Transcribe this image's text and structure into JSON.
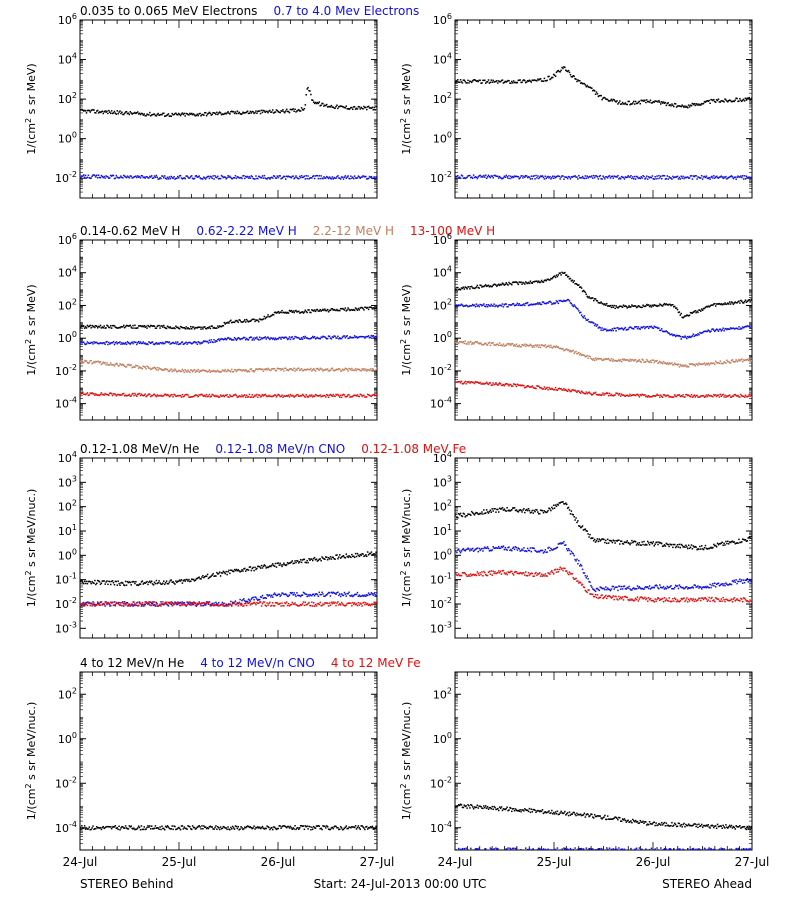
{
  "colors": {
    "black": "#000000",
    "blue": "#1010e0",
    "tan": "#c08060",
    "red": "#e01010",
    "axis": "#000000"
  },
  "footer": {
    "left": "STEREO Behind",
    "center": "Start: 24-Jul-2013 00:00 UTC",
    "right": "STEREO Ahead"
  },
  "chart_data": [
    {
      "type": "scatter",
      "panel": "row1-behind",
      "log_scale": true,
      "x_tick_labels": [],
      "x": [
        0,
        3
      ],
      "ylim": [
        0.001,
        1000000
      ],
      "ylabel": "1/(cm² s sr MeV)",
      "ytick_labels": [
        "10^-2",
        "10^0",
        "10^2",
        "10^4",
        "10^6"
      ],
      "legend_entries": [
        {
          "text": "0.035 to 0.065 MeV Electrons",
          "color": "black"
        },
        {
          "text": "0.7 to 4.0 Mev Electrons",
          "color": "blue"
        }
      ],
      "series": [
        {
          "color": "black",
          "points": [
            [
              0.0,
              25
            ],
            [
              0.3,
              22
            ],
            [
              0.6,
              18
            ],
            [
              0.9,
              16
            ],
            [
              1.2,
              17
            ],
            [
              1.5,
              20
            ],
            [
              1.8,
              22
            ],
            [
              2.1,
              25
            ],
            [
              2.2,
              28
            ],
            [
              2.27,
              35
            ],
            [
              2.3,
              500
            ],
            [
              2.35,
              80
            ],
            [
              2.45,
              50
            ],
            [
              2.6,
              40
            ],
            [
              2.8,
              35
            ],
            [
              3.0,
              35
            ]
          ]
        },
        {
          "color": "blue",
          "points": [
            [
              0.0,
              0.012
            ],
            [
              1.0,
              0.011
            ],
            [
              2.0,
              0.011
            ],
            [
              3.0,
              0.011
            ]
          ]
        }
      ]
    },
    {
      "type": "scatter",
      "panel": "row1-ahead",
      "log_scale": true,
      "x_tick_labels": [],
      "x": [
        0,
        3
      ],
      "ylim": [
        0.001,
        1000000
      ],
      "ylabel": "1/(cm² s sr MeV)",
      "ytick_labels": [
        "10^-2",
        "10^0",
        "10^2",
        "10^4",
        "10^6"
      ],
      "legend_entries": [],
      "series": [
        {
          "color": "black",
          "points": [
            [
              0.0,
              800
            ],
            [
              0.5,
              750
            ],
            [
              0.9,
              900
            ],
            [
              1.0,
              1500
            ],
            [
              1.1,
              4000
            ],
            [
              1.2,
              1200
            ],
            [
              1.35,
              400
            ],
            [
              1.5,
              100
            ],
            [
              1.7,
              60
            ],
            [
              2.0,
              80
            ],
            [
              2.3,
              40
            ],
            [
              2.6,
              80
            ],
            [
              3.0,
              100
            ]
          ]
        },
        {
          "color": "blue",
          "points": [
            [
              0.0,
              0.012
            ],
            [
              1.0,
              0.011
            ],
            [
              2.0,
              0.011
            ],
            [
              3.0,
              0.011
            ]
          ]
        }
      ]
    },
    {
      "type": "scatter",
      "panel": "row2-behind",
      "log_scale": true,
      "x_tick_labels": [],
      "x": [
        0,
        3
      ],
      "ylim": [
        1e-05,
        1000000
      ],
      "ylabel": "1/(cm² s sr MeV)",
      "ytick_labels": [
        "10^-4",
        "10^-2",
        "10^0",
        "10^2",
        "10^4",
        "10^6"
      ],
      "legend_entries": [
        {
          "text": "0.14-0.62 MeV H",
          "color": "black"
        },
        {
          "text": "0.62-2.22 MeV H",
          "color": "blue"
        },
        {
          "text": "2.2-12 MeV H",
          "color": "tan"
        },
        {
          "text": "13-100 MeV H",
          "color": "red"
        }
      ],
      "series": [
        {
          "color": "black",
          "points": [
            [
              0.0,
              5
            ],
            [
              0.4,
              5
            ],
            [
              0.8,
              5
            ],
            [
              1.2,
              4
            ],
            [
              1.4,
              5
            ],
            [
              1.5,
              10
            ],
            [
              1.8,
              12
            ],
            [
              2.0,
              40
            ],
            [
              2.2,
              40
            ],
            [
              2.5,
              50
            ],
            [
              3.0,
              70
            ]
          ]
        },
        {
          "color": "blue",
          "points": [
            [
              0.0,
              0.5
            ],
            [
              0.5,
              0.5
            ],
            [
              1.2,
              0.5
            ],
            [
              1.5,
              0.9
            ],
            [
              2.0,
              1.0
            ],
            [
              3.0,
              1.2
            ]
          ]
        },
        {
          "color": "tan",
          "points": [
            [
              0.0,
              0.04
            ],
            [
              0.5,
              0.02
            ],
            [
              1.0,
              0.01
            ],
            [
              1.5,
              0.01
            ],
            [
              2.0,
              0.012
            ],
            [
              3.0,
              0.012
            ]
          ]
        },
        {
          "color": "red",
          "points": [
            [
              0.0,
              0.0004
            ],
            [
              1.0,
              0.0003
            ],
            [
              2.0,
              0.0003
            ],
            [
              3.0,
              0.0003
            ]
          ]
        }
      ]
    },
    {
      "type": "scatter",
      "panel": "row2-ahead",
      "log_scale": true,
      "x_tick_labels": [],
      "x": [
        0,
        3
      ],
      "ylim": [
        1e-05,
        1000000
      ],
      "ylabel": "1/(cm² s sr MeV)",
      "ytick_labels": [
        "10^-4",
        "10^-2",
        "10^0",
        "10^2",
        "10^4",
        "10^6"
      ],
      "legend_entries": [],
      "series": [
        {
          "color": "black",
          "points": [
            [
              0.0,
              1000
            ],
            [
              0.5,
              2000
            ],
            [
              0.9,
              3000
            ],
            [
              1.1,
              10000
            ],
            [
              1.25,
              1500
            ],
            [
              1.35,
              300
            ],
            [
              1.6,
              80
            ],
            [
              2.0,
              100
            ],
            [
              2.2,
              120
            ],
            [
              2.3,
              20
            ],
            [
              2.6,
              100
            ],
            [
              3.0,
              200
            ]
          ]
        },
        {
          "color": "blue",
          "points": [
            [
              0.0,
              100
            ],
            [
              0.5,
              100
            ],
            [
              1.0,
              150
            ],
            [
              1.15,
              200
            ],
            [
              1.3,
              20
            ],
            [
              1.5,
              3
            ],
            [
              2.0,
              5
            ],
            [
              2.3,
              1
            ],
            [
              2.6,
              3
            ],
            [
              3.0,
              5
            ]
          ]
        },
        {
          "color": "tan",
          "points": [
            [
              0.0,
              0.6
            ],
            [
              0.5,
              0.4
            ],
            [
              1.0,
              0.3
            ],
            [
              1.3,
              0.1
            ],
            [
              1.4,
              0.05
            ],
            [
              2.0,
              0.04
            ],
            [
              2.3,
              0.02
            ],
            [
              2.6,
              0.03
            ],
            [
              3.0,
              0.05
            ]
          ]
        },
        {
          "color": "red",
          "points": [
            [
              0.0,
              0.002
            ],
            [
              0.5,
              0.0015
            ],
            [
              1.0,
              0.0008
            ],
            [
              1.4,
              0.0004
            ],
            [
              2.0,
              0.0003
            ],
            [
              3.0,
              0.0003
            ]
          ]
        }
      ]
    },
    {
      "type": "scatter",
      "panel": "row3-behind",
      "log_scale": true,
      "x_tick_labels": [],
      "x": [
        0,
        3
      ],
      "ylim": [
        0.0004,
        10000
      ],
      "ylabel": "1/(cm² s sr MeV/nuc.)",
      "ytick_labels": [
        "10^-3",
        "10^-2",
        "10^-1",
        "10^0",
        "10^1",
        "10^2",
        "10^3",
        "10^4"
      ],
      "legend_entries": [
        {
          "text": "0.12-1.08 MeV/n He",
          "color": "black"
        },
        {
          "text": "0.12-1.08 MeV/n CNO",
          "color": "blue"
        },
        {
          "text": "0.12-1.08 MeV Fe",
          "color": "red"
        }
      ],
      "series": [
        {
          "color": "black",
          "points": [
            [
              0.0,
              0.08
            ],
            [
              0.5,
              0.07
            ],
            [
              1.0,
              0.08
            ],
            [
              1.5,
              0.2
            ],
            [
              2.0,
              0.4
            ],
            [
              2.5,
              0.8
            ],
            [
              3.0,
              1.2
            ]
          ]
        },
        {
          "color": "blue",
          "points": [
            [
              0.0,
              0.01
            ],
            [
              1.5,
              0.01
            ],
            [
              2.0,
              0.025
            ],
            [
              3.0,
              0.025
            ]
          ]
        },
        {
          "color": "red",
          "points": [
            [
              0.0,
              0.01
            ],
            [
              3.0,
              0.01
            ]
          ]
        }
      ]
    },
    {
      "type": "scatter",
      "panel": "row3-ahead",
      "log_scale": true,
      "x_tick_labels": [],
      "x": [
        0,
        3
      ],
      "ylim": [
        0.0004,
        10000
      ],
      "ylabel": "1/(cm² s sr MeV/nuc.)",
      "ytick_labels": [
        "10^-3",
        "10^-2",
        "10^-1",
        "10^0",
        "10^1",
        "10^2",
        "10^3",
        "10^4"
      ],
      "legend_entries": [],
      "series": [
        {
          "color": "black",
          "points": [
            [
              0.0,
              40
            ],
            [
              0.5,
              80
            ],
            [
              0.9,
              60
            ],
            [
              1.1,
              150
            ],
            [
              1.25,
              20
            ],
            [
              1.4,
              4
            ],
            [
              2.0,
              3
            ],
            [
              2.5,
              2
            ],
            [
              3.0,
              5
            ]
          ]
        },
        {
          "color": "blue",
          "points": [
            [
              0.0,
              1.5
            ],
            [
              0.5,
              2.0
            ],
            [
              0.9,
              1.5
            ],
            [
              1.1,
              3
            ],
            [
              1.25,
              0.5
            ],
            [
              1.4,
              0.04
            ],
            [
              2.0,
              0.05
            ],
            [
              2.5,
              0.05
            ],
            [
              3.0,
              0.1
            ]
          ]
        },
        {
          "color": "red",
          "points": [
            [
              0.0,
              0.15
            ],
            [
              0.5,
              0.2
            ],
            [
              0.9,
              0.15
            ],
            [
              1.1,
              0.3
            ],
            [
              1.25,
              0.08
            ],
            [
              1.4,
              0.02
            ],
            [
              2.0,
              0.015
            ],
            [
              3.0,
              0.015
            ]
          ]
        }
      ]
    },
    {
      "type": "scatter",
      "panel": "row4-behind",
      "log_scale": true,
      "x_tick_labels": [
        "24-Jul",
        "25-Jul",
        "26-Jul",
        "27-Jul"
      ],
      "x": [
        0,
        3
      ],
      "ylim": [
        1e-05,
        1000
      ],
      "ylabel": "1/(cm² s sr MeV/nuc.)",
      "ytick_labels": [
        "10^-4",
        "10^-2",
        "10^0",
        "10^2"
      ],
      "legend_entries": [
        {
          "text": "4 to 12 MeV/n He",
          "color": "black"
        },
        {
          "text": "4 to 12 MeV/n CNO",
          "color": "blue"
        },
        {
          "text": "4 to 12 MeV Fe",
          "color": "red"
        }
      ],
      "series": [
        {
          "color": "black",
          "points": [
            [
              0.0,
              0.0001
            ],
            [
              1.0,
              0.0001
            ],
            [
              2.0,
              0.0001
            ],
            [
              3.0,
              0.0001
            ]
          ]
        }
      ]
    },
    {
      "type": "scatter",
      "panel": "row4-ahead",
      "log_scale": true,
      "x_tick_labels": [
        "24-Jul",
        "25-Jul",
        "26-Jul",
        "27-Jul"
      ],
      "x": [
        0,
        3
      ],
      "ylim": [
        1e-05,
        1000
      ],
      "ylabel": "1/(cm² s sr MeV/nuc.)",
      "ytick_labels": [
        "10^-4",
        "10^-2",
        "10^0",
        "10^2"
      ],
      "legend_entries": [],
      "series": [
        {
          "color": "black",
          "points": [
            [
              0.0,
              0.001
            ],
            [
              0.5,
              0.0007
            ],
            [
              1.0,
              0.0005
            ],
            [
              1.5,
              0.0003
            ],
            [
              2.0,
              0.00015
            ],
            [
              3.0,
              0.0001
            ]
          ]
        },
        {
          "color": "blue",
          "points": [
            [
              0.0,
              1e-05
            ],
            [
              3.0,
              1e-05
            ]
          ]
        }
      ]
    }
  ]
}
